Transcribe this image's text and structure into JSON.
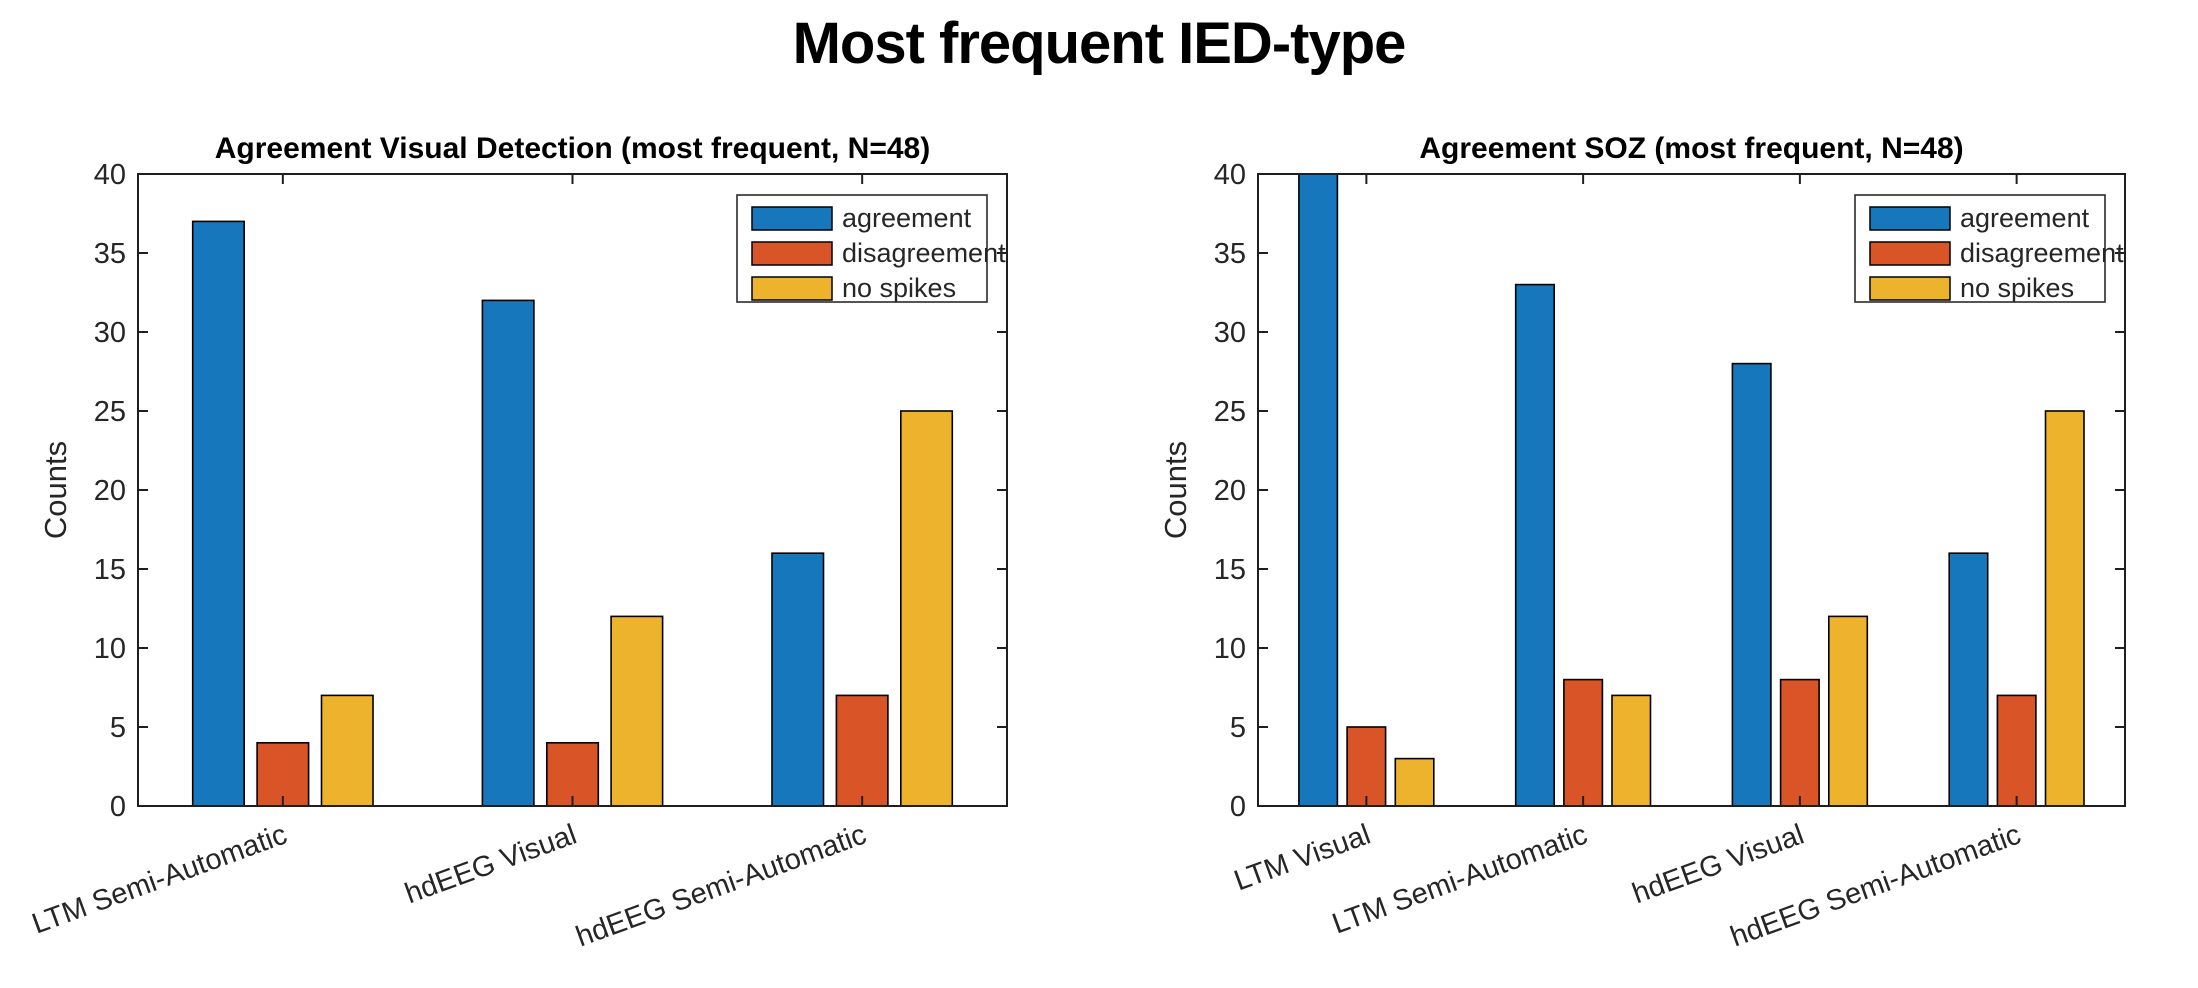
{
  "page_title": "Most frequent IED-type",
  "colors": {
    "agreement": "#1777BC",
    "disagreement": "#D95427",
    "no_spikes": "#EDB32C",
    "axis": "#1f1f1f",
    "tick_label": "#262626",
    "background": "#ffffff"
  },
  "chart_data": [
    {
      "type": "bar",
      "title": "Agreement Visual Detection (most frequent, N=48)",
      "xlabel": "",
      "ylabel": "Counts",
      "ylim": [
        0,
        40
      ],
      "ytick_step": 5,
      "yticks": [
        0,
        5,
        10,
        15,
        20,
        25,
        30,
        35,
        40
      ],
      "grid": false,
      "legend_position": "top-right-inside",
      "categories": [
        "LTM Semi-Automatic",
        "hdEEG Visual",
        "hdEEG Semi-Automatic"
      ],
      "series": [
        {
          "name": "agreement",
          "color": "#1777BC",
          "values": [
            37,
            32,
            16
          ]
        },
        {
          "name": "disagreement",
          "color": "#D95427",
          "values": [
            4,
            4,
            7
          ]
        },
        {
          "name": "no spikes",
          "color": "#EDB32C",
          "values": [
            7,
            12,
            25
          ]
        }
      ]
    },
    {
      "type": "bar",
      "title": "Agreement SOZ (most frequent, N=48)",
      "xlabel": "",
      "ylabel": "Counts",
      "ylim": [
        0,
        40
      ],
      "ytick_step": 5,
      "yticks": [
        0,
        5,
        10,
        15,
        20,
        25,
        30,
        35,
        40
      ],
      "grid": false,
      "legend_position": "top-right-inside",
      "categories": [
        "LTM Visual",
        "LTM Semi-Automatic",
        "hdEEG Visual",
        "hdEEG Semi-Automatic"
      ],
      "series": [
        {
          "name": "agreement",
          "color": "#1777BC",
          "values": [
            40,
            33,
            28,
            16
          ]
        },
        {
          "name": "disagreement",
          "color": "#D95427",
          "values": [
            5,
            8,
            8,
            7
          ]
        },
        {
          "name": "no spikes",
          "color": "#EDB32C",
          "values": [
            3,
            7,
            12,
            25
          ]
        }
      ]
    }
  ]
}
